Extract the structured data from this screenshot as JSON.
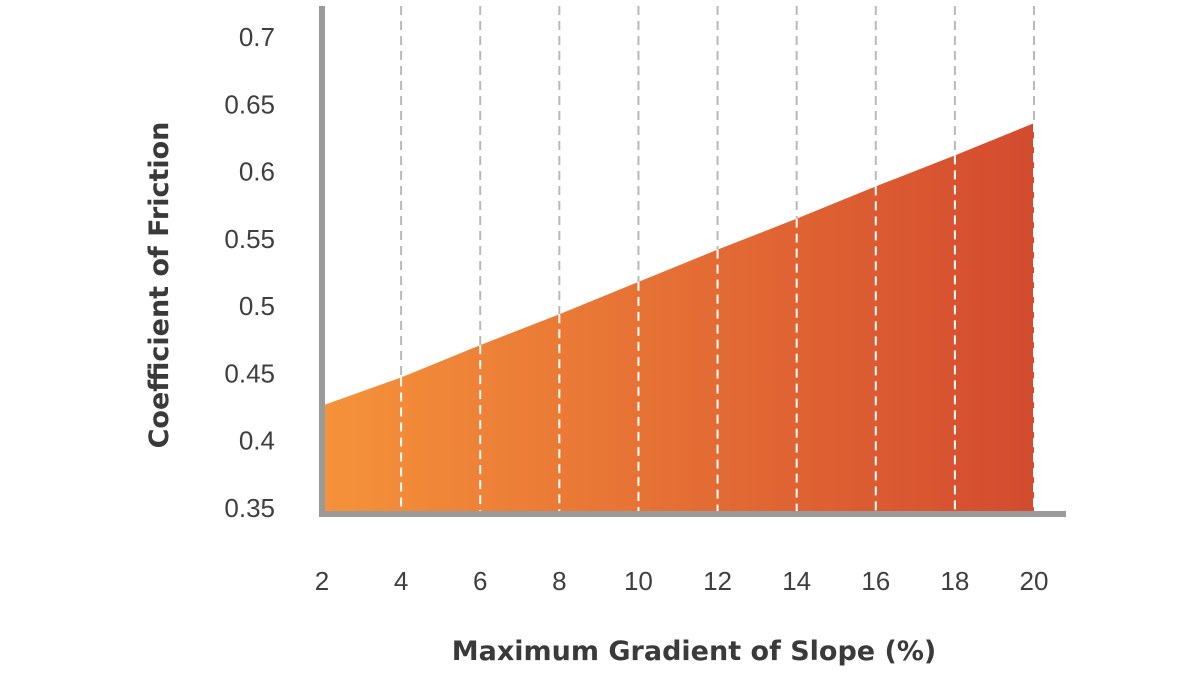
{
  "chart_data": {
    "type": "area",
    "title": "",
    "xlabel": "Maximum Gradient of Slope (%)",
    "ylabel": "Coefficient of Friction",
    "x_ticks": [
      "2",
      "4",
      "6",
      "8",
      "10",
      "12",
      "14",
      "16",
      "18",
      "20"
    ],
    "y_ticks": [
      "0.35",
      "0.4",
      "0.45",
      "0.5",
      "0.55",
      "0.6",
      "0.65",
      "0.7"
    ],
    "xlim": [
      2,
      20
    ],
    "ylim": [
      0.35,
      0.7
    ],
    "grid": "vertical-dashed",
    "fill_colors": [
      "#f5923a",
      "#d44b2f"
    ],
    "series": [
      {
        "x": [
          2,
          4,
          6,
          8,
          10,
          12,
          14,
          16,
          18,
          20
        ],
        "values": [
          0.426,
          0.447,
          0.471,
          0.494,
          0.518,
          0.542,
          0.565,
          0.589,
          0.612,
          0.636
        ]
      }
    ]
  }
}
